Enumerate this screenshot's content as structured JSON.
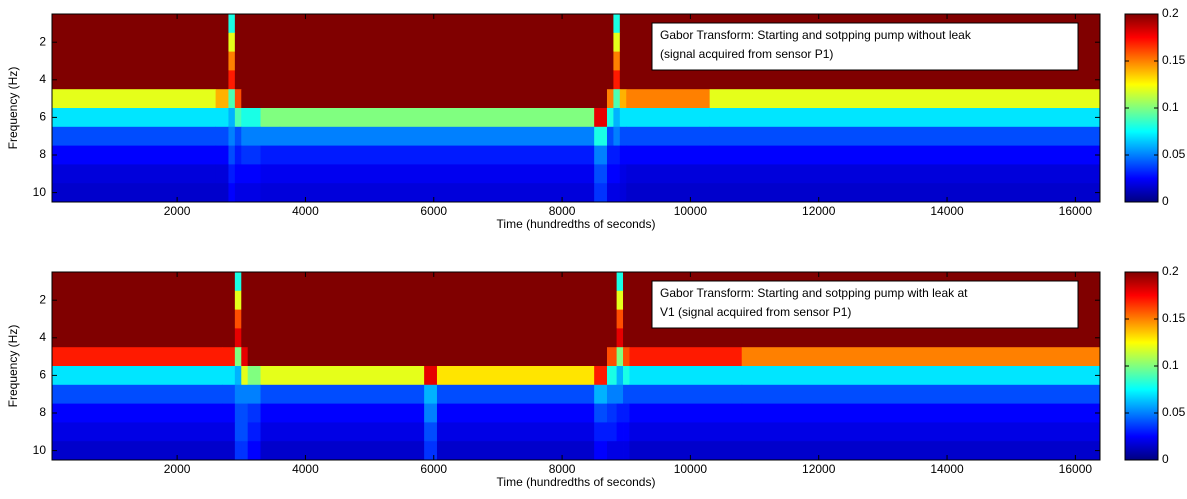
{
  "chart_data": [
    {
      "type": "heatmap",
      "annotation": [
        "Gabor Transform: Starting and sotpping pump without leak",
        "(signal acquired from sensor P1)"
      ],
      "x_label": "Time (hundredths of seconds)",
      "y_label": "Frequency (Hz)",
      "xlim": [
        50,
        16384
      ],
      "xticks": [
        2000,
        4000,
        6000,
        8000,
        10000,
        12000,
        14000,
        16000
      ],
      "ylim": [
        0.5,
        10.5
      ],
      "yticks": [
        2,
        4,
        6,
        8,
        10
      ],
      "y_reversed": true,
      "clim": [
        0,
        0.2
      ],
      "cticks": [
        0,
        0.05,
        0.1,
        0.15,
        0.2
      ],
      "colormap": "jet",
      "x_edges": [
        50,
        2600,
        2800,
        2900,
        3000,
        3300,
        3600,
        8500,
        8700,
        8800,
        8900,
        9000,
        10300,
        16384
      ],
      "rows": [
        1,
        2,
        3,
        4,
        5,
        6,
        7,
        8,
        9,
        10
      ],
      "z": [
        [
          0.2,
          0.2,
          0.08,
          0.2,
          0.2,
          0.2,
          0.2,
          0.2,
          0.2,
          0.08,
          0.2,
          0.2,
          0.2
        ],
        [
          0.2,
          0.2,
          0.12,
          0.2,
          0.2,
          0.2,
          0.2,
          0.2,
          0.2,
          0.12,
          0.2,
          0.2,
          0.2
        ],
        [
          0.2,
          0.2,
          0.15,
          0.2,
          0.2,
          0.2,
          0.2,
          0.2,
          0.2,
          0.15,
          0.2,
          0.2,
          0.2
        ],
        [
          0.2,
          0.2,
          0.17,
          0.2,
          0.2,
          0.2,
          0.2,
          0.2,
          0.2,
          0.17,
          0.2,
          0.2,
          0.2
        ],
        [
          0.12,
          0.14,
          0.09,
          0.16,
          0.2,
          0.2,
          0.2,
          0.2,
          0.15,
          0.09,
          0.14,
          0.15,
          0.12
        ],
        [
          0.07,
          0.07,
          0.06,
          0.09,
          0.08,
          0.1,
          0.1,
          0.18,
          0.08,
          0.06,
          0.07,
          0.07,
          0.07
        ],
        [
          0.04,
          0.04,
          0.05,
          0.04,
          0.05,
          0.05,
          0.05,
          0.08,
          0.04,
          0.05,
          0.04,
          0.04,
          0.04
        ],
        [
          0.025,
          0.025,
          0.04,
          0.03,
          0.035,
          0.03,
          0.03,
          0.05,
          0.03,
          0.03,
          0.025,
          0.025,
          0.025
        ],
        [
          0.018,
          0.018,
          0.03,
          0.025,
          0.025,
          0.022,
          0.022,
          0.04,
          0.025,
          0.025,
          0.02,
          0.018,
          0.018
        ],
        [
          0.015,
          0.015,
          0.025,
          0.02,
          0.02,
          0.018,
          0.018,
          0.035,
          0.02,
          0.02,
          0.018,
          0.015,
          0.015
        ]
      ]
    },
    {
      "type": "heatmap",
      "annotation": [
        "Gabor Transform: Starting and sotpping pump with leak at",
        "V1 (signal acquired from sensor P1)"
      ],
      "x_label": "Time (hundredths of seconds)",
      "y_label": "Frequency (Hz)",
      "xlim": [
        50,
        16384
      ],
      "xticks": [
        2000,
        4000,
        6000,
        8000,
        10000,
        12000,
        14000,
        16000
      ],
      "ylim": [
        0.5,
        10.5
      ],
      "yticks": [
        2,
        4,
        6,
        8,
        10
      ],
      "y_reversed": true,
      "clim": [
        0,
        0.2
      ],
      "cticks": [
        0,
        0.05,
        0.1,
        0.15,
        0.2
      ],
      "colormap": "jet",
      "x_edges": [
        50,
        2700,
        2900,
        3000,
        3100,
        3300,
        5850,
        6050,
        8500,
        8700,
        8850,
        8950,
        9050,
        10800,
        16384
      ],
      "rows": [
        1,
        2,
        3,
        4,
        5,
        6,
        7,
        8,
        9,
        10
      ],
      "z": [
        [
          0.2,
          0.2,
          0.08,
          0.2,
          0.2,
          0.2,
          0.2,
          0.2,
          0.2,
          0.2,
          0.08,
          0.2,
          0.2,
          0.2
        ],
        [
          0.2,
          0.2,
          0.12,
          0.2,
          0.2,
          0.2,
          0.2,
          0.2,
          0.2,
          0.2,
          0.12,
          0.2,
          0.2,
          0.2
        ],
        [
          0.2,
          0.2,
          0.16,
          0.2,
          0.2,
          0.2,
          0.2,
          0.2,
          0.2,
          0.2,
          0.16,
          0.2,
          0.2,
          0.2
        ],
        [
          0.2,
          0.2,
          0.18,
          0.2,
          0.2,
          0.2,
          0.2,
          0.2,
          0.2,
          0.2,
          0.18,
          0.2,
          0.2,
          0.2
        ],
        [
          0.17,
          0.17,
          0.1,
          0.18,
          0.2,
          0.2,
          0.2,
          0.2,
          0.2,
          0.16,
          0.1,
          0.16,
          0.17,
          0.15
        ],
        [
          0.07,
          0.07,
          0.06,
          0.12,
          0.1,
          0.12,
          0.18,
          0.13,
          0.17,
          0.08,
          0.06,
          0.08,
          0.07,
          0.07
        ],
        [
          0.04,
          0.04,
          0.05,
          0.05,
          0.05,
          0.04,
          0.06,
          0.04,
          0.06,
          0.05,
          0.05,
          0.04,
          0.04,
          0.04
        ],
        [
          0.025,
          0.025,
          0.04,
          0.04,
          0.035,
          0.025,
          0.05,
          0.025,
          0.04,
          0.035,
          0.03,
          0.03,
          0.025,
          0.025
        ],
        [
          0.02,
          0.02,
          0.04,
          0.04,
          0.03,
          0.02,
          0.04,
          0.02,
          0.03,
          0.03,
          0.025,
          0.025,
          0.02,
          0.02
        ],
        [
          0.015,
          0.015,
          0.035,
          0.035,
          0.025,
          0.015,
          0.035,
          0.015,
          0.025,
          0.02,
          0.02,
          0.02,
          0.015,
          0.015
        ]
      ]
    }
  ]
}
